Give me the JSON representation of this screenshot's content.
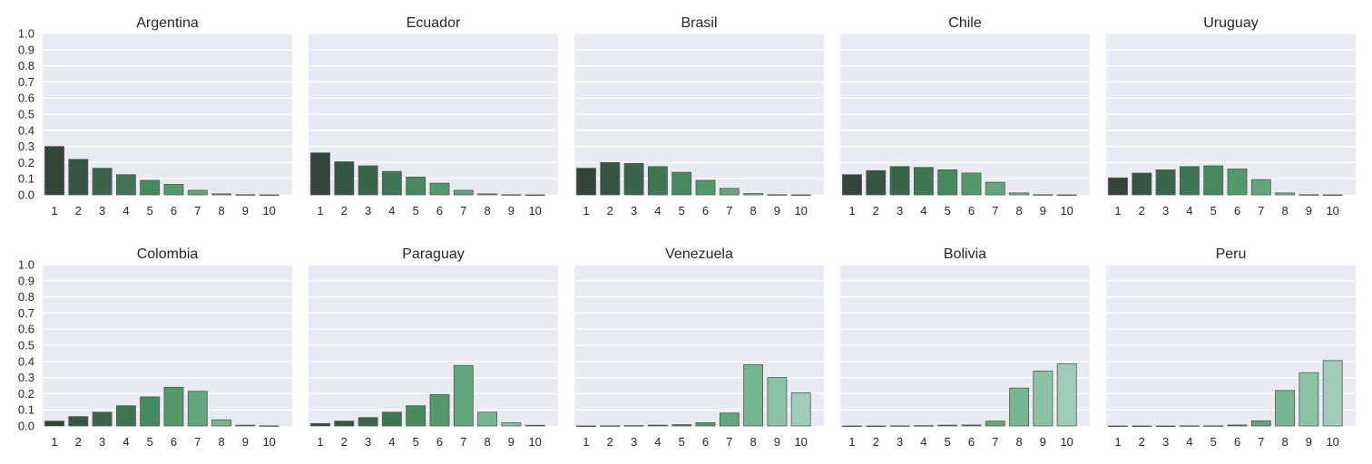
{
  "chart_data": [
    {
      "type": "bar",
      "title": "Argentina",
      "categories": [
        "1",
        "2",
        "3",
        "4",
        "5",
        "6",
        "7",
        "8",
        "9",
        "10"
      ],
      "values": [
        0.3,
        0.22,
        0.165,
        0.125,
        0.09,
        0.065,
        0.028,
        0.006,
        0.001,
        0.0
      ],
      "ylim": [
        0,
        1.0
      ],
      "yticks": [
        "0.0",
        "0.1",
        "0.2",
        "0.3",
        "0.4",
        "0.5",
        "0.6",
        "0.7",
        "0.8",
        "0.9",
        "1.0"
      ],
      "grid": true
    },
    {
      "type": "bar",
      "title": "Ecuador",
      "categories": [
        "1",
        "2",
        "3",
        "4",
        "5",
        "6",
        "7",
        "8",
        "9",
        "10"
      ],
      "values": [
        0.26,
        0.205,
        0.18,
        0.145,
        0.11,
        0.072,
        0.028,
        0.006,
        0.001,
        0.0
      ],
      "ylim": [
        0,
        1.0
      ],
      "grid": true
    },
    {
      "type": "bar",
      "title": "Brasil",
      "categories": [
        "1",
        "2",
        "3",
        "4",
        "5",
        "6",
        "7",
        "8",
        "9",
        "10"
      ],
      "values": [
        0.165,
        0.2,
        0.195,
        0.175,
        0.14,
        0.09,
        0.04,
        0.008,
        0.001,
        0.0
      ],
      "ylim": [
        0,
        1.0
      ],
      "grid": true
    },
    {
      "type": "bar",
      "title": "Chile",
      "categories": [
        "1",
        "2",
        "3",
        "4",
        "5",
        "6",
        "7",
        "8",
        "9",
        "10"
      ],
      "values": [
        0.125,
        0.15,
        0.175,
        0.17,
        0.155,
        0.135,
        0.078,
        0.012,
        0.001,
        0.0
      ],
      "ylim": [
        0,
        1.0
      ],
      "grid": true
    },
    {
      "type": "bar",
      "title": "Uruguay",
      "categories": [
        "1",
        "2",
        "3",
        "4",
        "5",
        "6",
        "7",
        "8",
        "9",
        "10"
      ],
      "values": [
        0.105,
        0.135,
        0.155,
        0.175,
        0.18,
        0.16,
        0.095,
        0.012,
        0.001,
        0.0
      ],
      "ylim": [
        0,
        1.0
      ],
      "grid": true
    },
    {
      "type": "bar",
      "title": "Colombia",
      "categories": [
        "1",
        "2",
        "3",
        "4",
        "5",
        "6",
        "7",
        "8",
        "9",
        "10"
      ],
      "values": [
        0.03,
        0.058,
        0.085,
        0.125,
        0.18,
        0.24,
        0.215,
        0.038,
        0.005,
        0.001
      ],
      "ylim": [
        0,
        1.0
      ],
      "yticks": [
        "0.0",
        "0.1",
        "0.2",
        "0.3",
        "0.4",
        "0.5",
        "0.6",
        "0.7",
        "0.8",
        "0.9",
        "1.0"
      ],
      "grid": true
    },
    {
      "type": "bar",
      "title": "Paraguay",
      "categories": [
        "1",
        "2",
        "3",
        "4",
        "5",
        "6",
        "7",
        "8",
        "9",
        "10"
      ],
      "values": [
        0.015,
        0.03,
        0.052,
        0.085,
        0.125,
        0.195,
        0.375,
        0.085,
        0.02,
        0.004
      ],
      "ylim": [
        0,
        1.0
      ],
      "grid": true
    },
    {
      "type": "bar",
      "title": "Venezuela",
      "categories": [
        "1",
        "2",
        "3",
        "4",
        "5",
        "6",
        "7",
        "8",
        "9",
        "10"
      ],
      "values": [
        0.0,
        0.001,
        0.002,
        0.005,
        0.008,
        0.02,
        0.08,
        0.38,
        0.3,
        0.205
      ],
      "ylim": [
        0,
        1.0
      ],
      "grid": true
    },
    {
      "type": "bar",
      "title": "Bolivia",
      "categories": [
        "1",
        "2",
        "3",
        "4",
        "5",
        "6",
        "7",
        "8",
        "9",
        "10"
      ],
      "values": [
        0.0,
        0.0,
        0.001,
        0.002,
        0.005,
        0.006,
        0.03,
        0.235,
        0.34,
        0.385
      ],
      "ylim": [
        0,
        1.0
      ],
      "grid": true
    },
    {
      "type": "bar",
      "title": "Peru",
      "categories": [
        "1",
        "2",
        "3",
        "4",
        "5",
        "6",
        "7",
        "8",
        "9",
        "10"
      ],
      "values": [
        0.0,
        0.0,
        0.0,
        0.001,
        0.001,
        0.006,
        0.032,
        0.22,
        0.33,
        0.405
      ],
      "ylim": [
        0,
        1.0
      ],
      "grid": true
    }
  ],
  "palette": [
    "#33443b",
    "#365443",
    "#3a654b",
    "#3e7654",
    "#47895f",
    "#54996c",
    "#62a77b",
    "#77b590",
    "#8cc2a6",
    "#a0cdbb"
  ],
  "axes_background": "#eaeaf2"
}
